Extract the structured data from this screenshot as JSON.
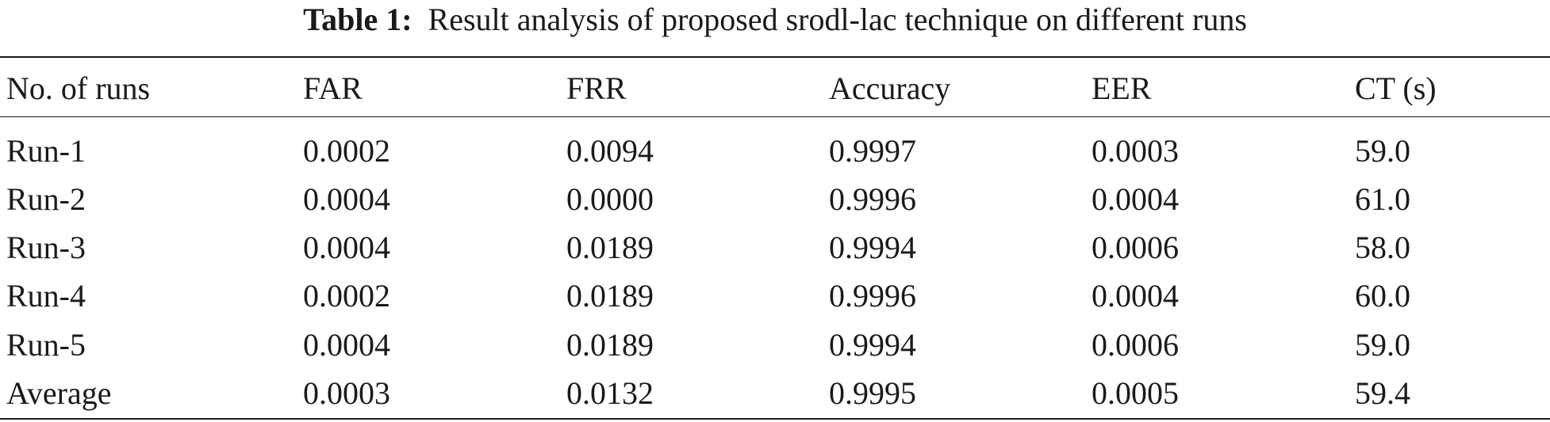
{
  "caption": {
    "label": "Table 1:",
    "text": "Result analysis of proposed srodl-lac technique on different runs"
  },
  "table": {
    "headers": [
      "No. of runs",
      "FAR",
      "FRR",
      "Accuracy",
      "EER",
      "CT (s)"
    ],
    "rows": [
      [
        "Run-1",
        "0.0002",
        "0.0094",
        "0.9997",
        "0.0003",
        "59.0"
      ],
      [
        "Run-2",
        "0.0004",
        "0.0000",
        "0.9996",
        "0.0004",
        "61.0"
      ],
      [
        "Run-3",
        "0.0004",
        "0.0189",
        "0.9994",
        "0.0006",
        "58.0"
      ],
      [
        "Run-4",
        "0.0002",
        "0.0189",
        "0.9996",
        "0.0004",
        "60.0"
      ],
      [
        "Run-5",
        "0.0004",
        "0.0189",
        "0.9994",
        "0.0006",
        "59.0"
      ],
      [
        "Average",
        "0.0003",
        "0.0132",
        "0.9995",
        "0.0005",
        "59.4"
      ]
    ]
  }
}
